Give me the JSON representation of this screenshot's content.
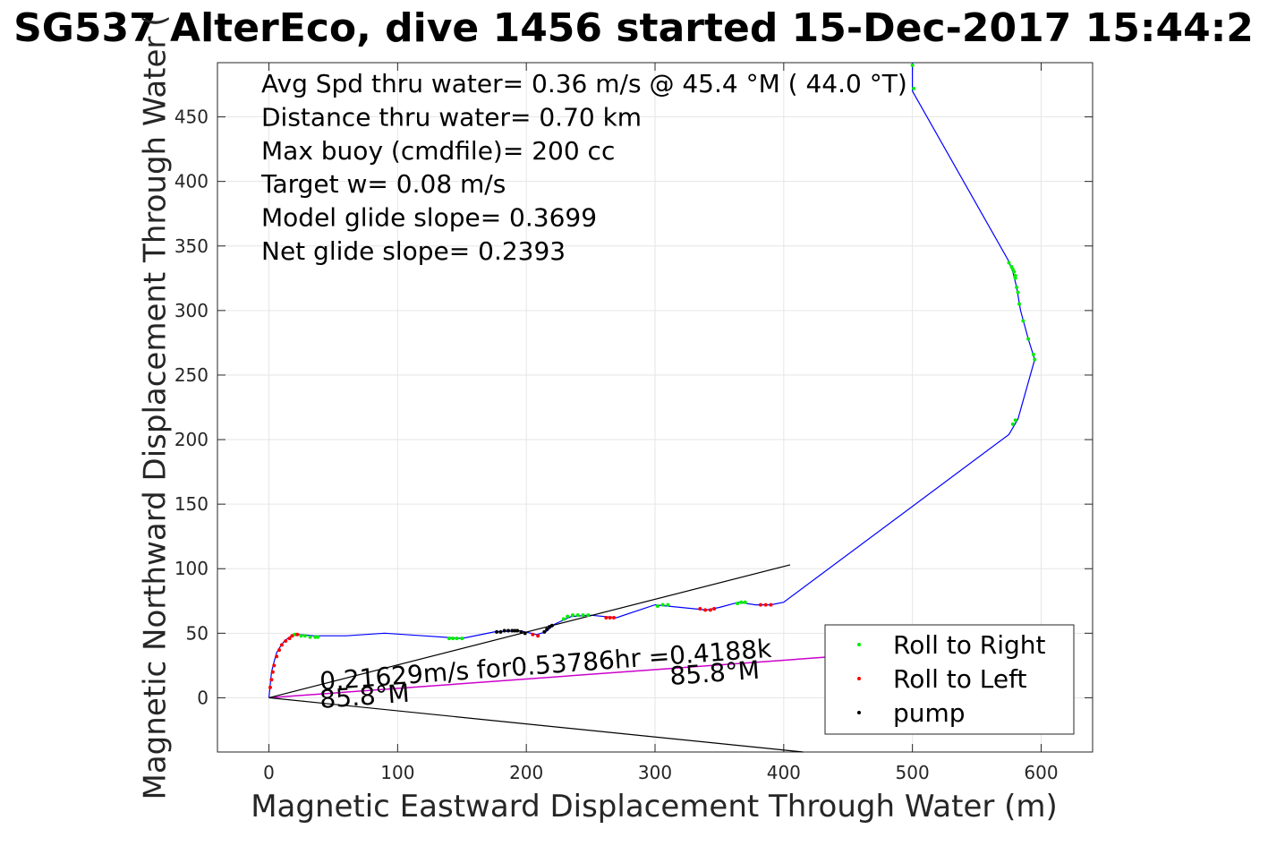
{
  "chart_data": {
    "type": "line",
    "title": "SG537 AlterEco, dive 1456 started 15-Dec-2017 15:44:2",
    "xlabel": "Magnetic Eastward Displacement Through Water (m)",
    "ylabel": "Magnetic Northward Displacement Through Water (",
    "xlim": [
      -40,
      640
    ],
    "ylim": [
      -42,
      492
    ],
    "x_ticks": [
      0,
      100,
      200,
      300,
      400,
      500,
      600
    ],
    "y_ticks": [
      0,
      50,
      100,
      150,
      200,
      250,
      300,
      350,
      400,
      450
    ],
    "grid": true,
    "legend_position": "bottom-right",
    "colors": {
      "track": "#0000ff",
      "roll_right": "#00ee00",
      "roll_left": "#ff0000",
      "pump": "#000000",
      "current": "#cc00cc",
      "axes": "#262626",
      "grid": "#e6e6e6"
    },
    "annotations": [
      "Avg Spd thru water=  0.36 m/s @  45.4 °M ( 44.0 °T)",
      "Distance thru water=  0.70 km",
      "Max buoy (cmdfile)= 200 cc",
      "Target w= 0.08 m/s",
      "Model glide slope= 0.3699",
      "Net glide slope= 0.2393"
    ],
    "current_label": "0.21629m/s for0.53786hr =0.4188k",
    "heading_labels": [
      {
        "text": "85.8°M",
        "x": 40,
        "y": -8
      },
      {
        "text": "85.8°M",
        "x": 312,
        "y": 10
      }
    ],
    "legend": [
      "Roll to Right",
      "Roll to Left",
      "pump"
    ],
    "series": [
      {
        "name": "",
        "role": "track",
        "x": [
          0,
          1,
          2,
          4,
          6,
          9,
          12,
          16,
          20,
          25,
          35,
          60,
          90,
          120,
          150,
          175,
          195,
          208,
          215,
          222,
          235,
          250,
          270,
          300,
          320,
          340,
          350,
          365,
          378,
          390,
          400,
          575,
          582,
          595,
          590,
          584,
          581,
          578,
          575,
          500,
          500
        ],
        "y": [
          0,
          10,
          20,
          28,
          35,
          40,
          44,
          47,
          49,
          49,
          48,
          48,
          50,
          48,
          46,
          51,
          52,
          49,
          51,
          57,
          63,
          64,
          62,
          72,
          70,
          68,
          70,
          74,
          72,
          72,
          74,
          204,
          216,
          262,
          278,
          300,
          318,
          330,
          338,
          470,
          492
        ]
      },
      {
        "name": "",
        "role": "current",
        "x": [
          0,
          440
        ],
        "y": [
          0,
          32
        ]
      },
      {
        "name": "",
        "role": "cone-upper",
        "x": [
          0,
          405
        ],
        "y": [
          0,
          103
        ]
      },
      {
        "name": "",
        "role": "cone-lower",
        "x": [
          0,
          415
        ],
        "y": [
          0,
          -42
        ]
      },
      {
        "name": "Roll to Right",
        "role": "points",
        "x": [
          20,
          25,
          28,
          32,
          36,
          38,
          140,
          143,
          146,
          150,
          229,
          232,
          236,
          240,
          244,
          248,
          302,
          306,
          310,
          364,
          367,
          370,
          500,
          501,
          575,
          577,
          578,
          579,
          580,
          580,
          581,
          582,
          583,
          586,
          590,
          594,
          595,
          578,
          580
        ],
        "y": [
          49,
          48,
          48,
          47,
          47,
          47,
          46,
          46,
          46,
          46,
          61,
          63,
          64,
          64,
          64,
          64,
          71,
          72,
          72,
          73,
          74,
          74,
          490,
          472,
          337,
          334,
          332,
          330,
          327,
          325,
          318,
          314,
          305,
          292,
          278,
          266,
          262,
          212,
          215
        ]
      },
      {
        "name": "Roll to Left",
        "role": "points",
        "x": [
          1,
          2,
          3,
          4,
          6,
          8,
          10,
          13,
          16,
          18,
          22,
          205,
          209,
          262,
          265,
          268,
          335,
          339,
          343,
          346,
          382,
          386,
          390
        ],
        "y": [
          8,
          14,
          20,
          25,
          32,
          37,
          41,
          44,
          46,
          48,
          49,
          49,
          48,
          62,
          62,
          62,
          69,
          68,
          68,
          69,
          72,
          72,
          72
        ]
      },
      {
        "name": "pump",
        "role": "points",
        "x": [
          177,
          180,
          183,
          186,
          189,
          191,
          193,
          196,
          199,
          214,
          216,
          218,
          220
        ],
        "y": [
          51,
          51,
          52,
          52,
          52,
          52,
          52,
          51,
          50,
          51,
          53,
          55,
          56
        ]
      }
    ]
  }
}
